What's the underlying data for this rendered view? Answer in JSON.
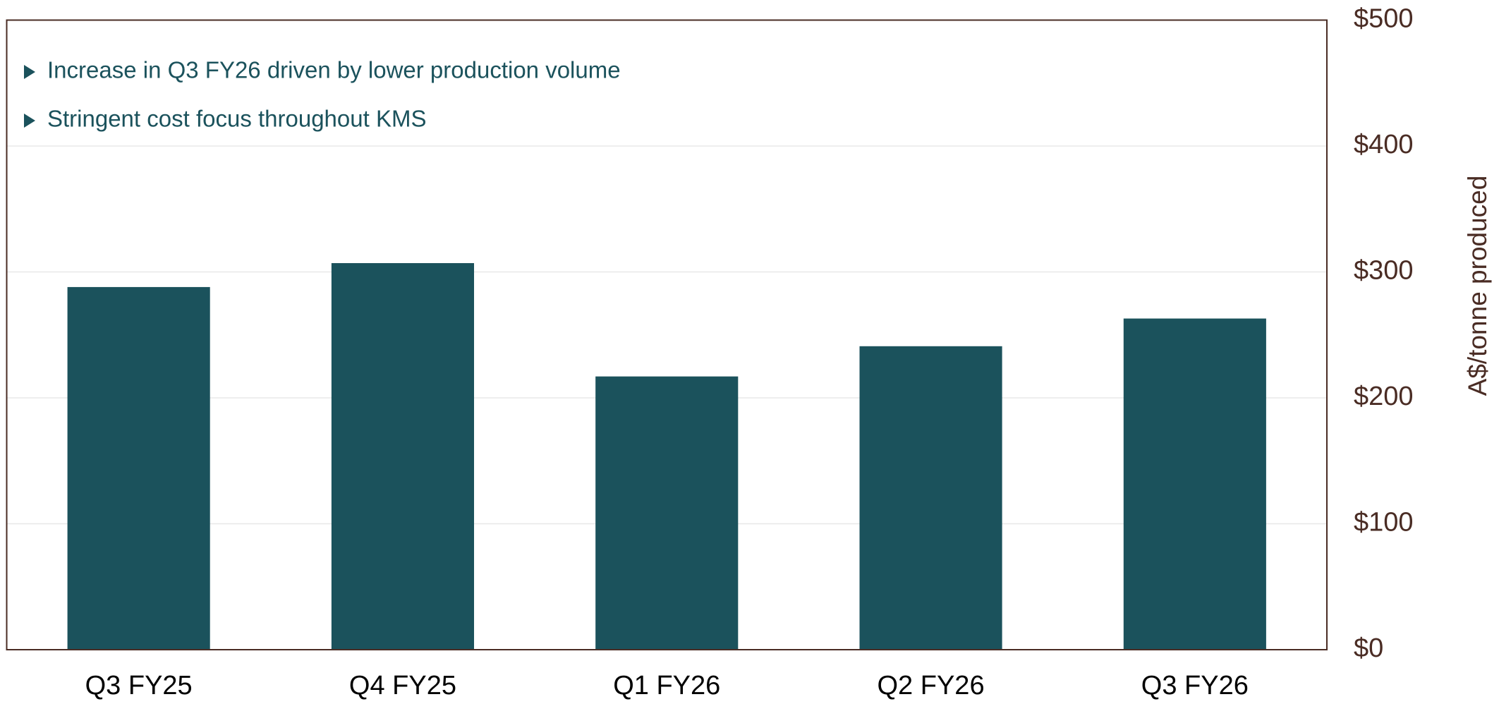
{
  "chart_data": {
    "type": "bar",
    "categories": [
      "Q3 FY25",
      "Q4 FY25",
      "Q1 FY26",
      "Q2 FY26",
      "Q3 FY26"
    ],
    "values": [
      288,
      307,
      217,
      241,
      263
    ],
    "color": "#1b525c",
    "y_axis_label": "A$/tonne produced",
    "y_axis_side": "right",
    "annotations": [
      "Increase in Q3 FY26 driven by lower production volume",
      "Stringent cost focus throughout KMS"
    ],
    "ylim": [
      0,
      500
    ],
    "yticks": [
      {
        "value": 0,
        "label": "$0"
      },
      {
        "value": 100,
        "label": "$100"
      },
      {
        "value": 200,
        "label": "$200"
      },
      {
        "value": 300,
        "label": "$300"
      },
      {
        "value": 400,
        "label": "$400"
      },
      {
        "value": 500,
        "label": "$500"
      }
    ],
    "grid": true
  }
}
